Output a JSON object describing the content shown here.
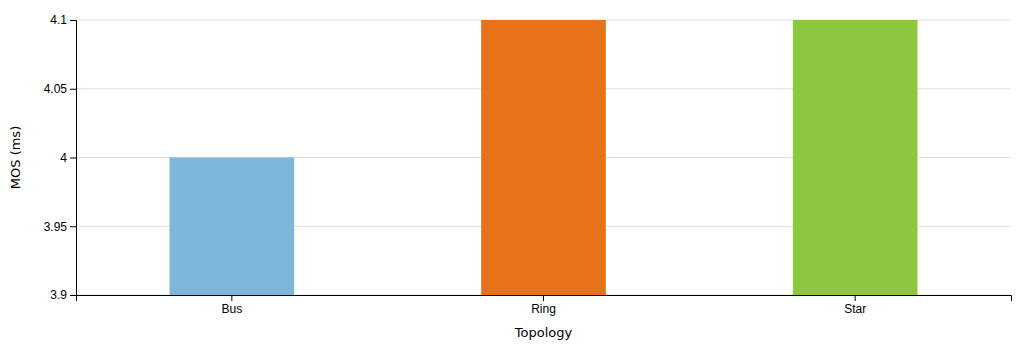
{
  "chart_data": {
    "type": "bar",
    "categories": [
      "Bus",
      "Ring",
      "Star"
    ],
    "values": [
      4.0,
      4.1,
      4.1
    ],
    "colors": [
      "#7EB6D9",
      "#E8721C",
      "#8DC63F"
    ],
    "xlabel": "Topology",
    "ylabel": "MOS (ms)",
    "ylim": [
      3.9,
      4.1
    ],
    "yticks": [
      3.9,
      3.95,
      4,
      4.05,
      4.1
    ],
    "grid": true
  }
}
